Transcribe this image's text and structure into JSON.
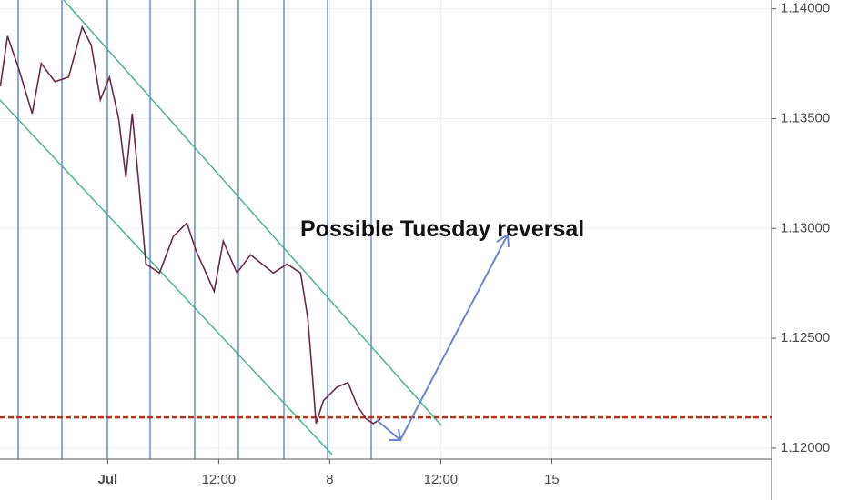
{
  "chart_data": {
    "type": "line",
    "annotation": "Possible Tuesday reversal",
    "x": [
      -0.967,
      -0.902,
      -0.803,
      -0.68,
      -0.598,
      -0.475,
      -0.352,
      -0.23,
      -0.148,
      -0.066,
      0.016,
      0.098,
      0.164,
      0.221,
      0.279,
      0.344,
      0.467,
      0.59,
      0.713,
      0.795,
      0.959,
      1.041,
      1.164,
      1.287,
      1.492,
      1.615,
      1.738,
      1.803,
      1.836,
      1.877,
      1.943,
      2.066,
      2.164,
      2.246,
      2.328,
      2.393,
      2.459
    ],
    "series": [
      {
        "color": "#6a2a4a",
        "values": [
          1.13647,
          1.13876,
          1.1373,
          1.13523,
          1.13751,
          1.13668,
          1.13689,
          1.13917,
          1.13834,
          1.13585,
          1.13689,
          1.13502,
          1.13232,
          1.13523,
          1.13212,
          1.12838,
          1.12797,
          1.12963,
          1.13025,
          1.129,
          1.12714,
          1.12942,
          1.12797,
          1.1288,
          1.12797,
          1.12838,
          1.12797,
          1.12589,
          1.12382,
          1.12112,
          1.12216,
          1.12278,
          1.12299,
          1.12195,
          1.12133,
          1.12112,
          1.12133
        ]
      }
    ],
    "support_level": 1.1214,
    "support_color": "#b5341c",
    "xlim": [
      -0.97,
      5.98
    ],
    "xticks": [
      {
        "value": 0,
        "label": "Jul"
      },
      {
        "value": 1,
        "label": "12:00"
      },
      {
        "value": 2,
        "label": "8"
      },
      {
        "value": 3,
        "label": "12:00"
      },
      {
        "value": 4,
        "label": "15"
      }
    ],
    "ylim": [
      1.1195,
      1.1404
    ],
    "yticks": [
      {
        "value": 1.12,
        "label": "1.12000"
      },
      {
        "value": 1.125,
        "label": "1.12500"
      },
      {
        "value": 1.13,
        "label": "1.13000"
      },
      {
        "value": 1.135,
        "label": "1.13500"
      },
      {
        "value": 1.14,
        "label": "1.14000"
      }
    ],
    "grid": true
  }
}
